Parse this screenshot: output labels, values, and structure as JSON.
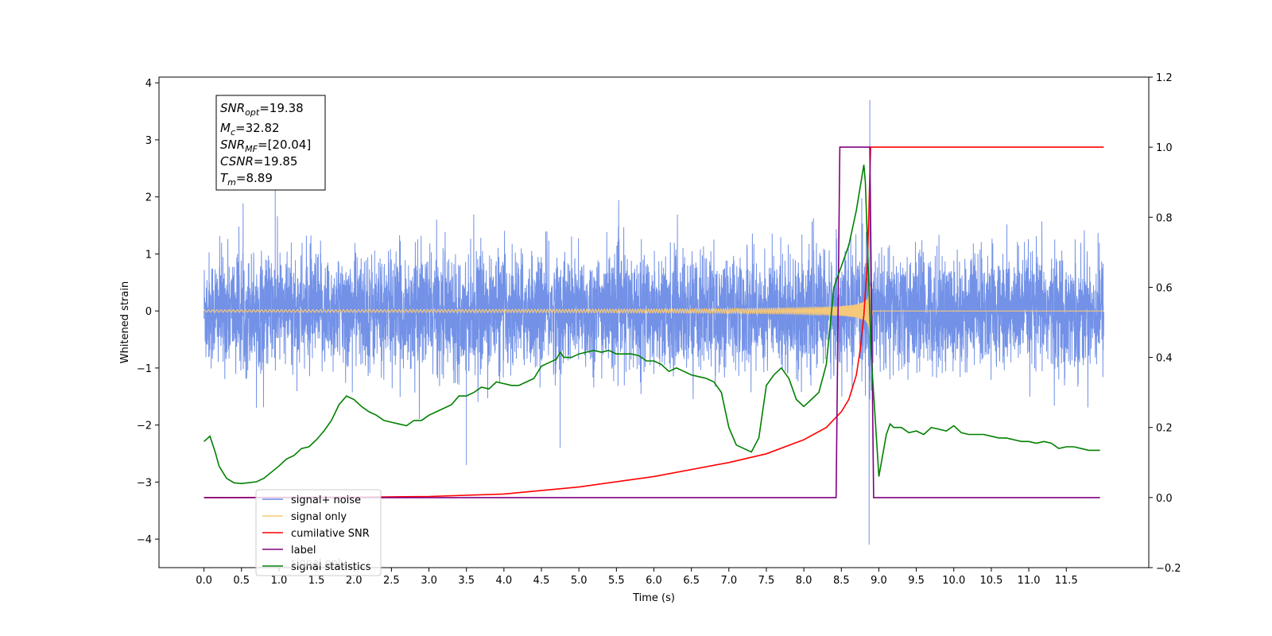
{
  "chart_data": {
    "type": "line",
    "xlabel": "Time (s)",
    "ylabel": "Whitened strain",
    "xlim": [
      -0.6,
      12.6
    ],
    "ylim": [
      -4.5,
      4.1
    ],
    "ylim_right": [
      -0.2,
      1.2
    ],
    "x_ticks": [
      "0.0",
      "0.5",
      "1.0",
      "1.5",
      "2.0",
      "2.5",
      "3.0",
      "3.5",
      "4.0",
      "4.5",
      "5.0",
      "5.5",
      "6.0",
      "6.5",
      "7.0",
      "7.5",
      "8.0",
      "8.5",
      "9.0",
      "9.5",
      "10.0",
      "10.5",
      "11.0",
      "11.5"
    ],
    "y_ticks": [
      "4",
      "3",
      "2",
      "1",
      "0",
      "−1",
      "−2",
      "−3",
      "−4"
    ],
    "y_ticks_right": [
      "1.2",
      "1.0",
      "0.8",
      "0.6",
      "0.4",
      "0.2",
      "0.0",
      "−0.2"
    ],
    "legend_position": "lower-left",
    "series": [
      {
        "name": "signal+ noise",
        "color": "#6a8be6",
        "axis": "left",
        "kind": "noise",
        "amplitude_rms": 0.5,
        "extremes": [
          [
            0.95,
            2.2
          ],
          [
            8.88,
            3.7
          ],
          [
            8.87,
            -4.1
          ],
          [
            3.5,
            -2.7
          ],
          [
            4.75,
            -2.4
          ]
        ]
      },
      {
        "name": "signal only",
        "color": "#f5c87a",
        "axis": "left",
        "kind": "chirp",
        "t_merger": 8.89,
        "peak_amplitude": 1.4
      },
      {
        "name": "cumilative SNR",
        "color": "#ff0000",
        "axis": "right",
        "x": [
          0.0,
          2.0,
          3.0,
          4.0,
          5.0,
          6.0,
          7.0,
          7.5,
          8.0,
          8.3,
          8.5,
          8.6,
          8.7,
          8.75,
          8.8,
          8.85,
          8.89,
          8.9,
          12.0
        ],
        "y": [
          0.0,
          0.001,
          0.003,
          0.01,
          0.03,
          0.06,
          0.1,
          0.125,
          0.165,
          0.2,
          0.245,
          0.28,
          0.35,
          0.42,
          0.52,
          0.68,
          1.0,
          1.0,
          1.0
        ]
      },
      {
        "name": "label",
        "color": "#800080",
        "axis": "right",
        "x": [
          0.0,
          8.43,
          8.48,
          8.88,
          8.93,
          11.95
        ],
        "y": [
          0.0,
          0.0,
          1.0,
          1.0,
          0.0,
          0.0
        ]
      },
      {
        "name": "signal statistics",
        "color": "#008000",
        "axis": "right",
        "x": [
          0.0,
          0.08,
          0.15,
          0.2,
          0.3,
          0.4,
          0.5,
          0.7,
          0.8,
          1.0,
          1.1,
          1.2,
          1.3,
          1.4,
          1.5,
          1.6,
          1.7,
          1.8,
          1.9,
          2.0,
          2.1,
          2.2,
          2.3,
          2.4,
          2.5,
          2.6,
          2.7,
          2.8,
          2.9,
          3.0,
          3.1,
          3.2,
          3.3,
          3.4,
          3.5,
          3.6,
          3.7,
          3.8,
          3.9,
          4.0,
          4.1,
          4.2,
          4.3,
          4.4,
          4.5,
          4.6,
          4.7,
          4.75,
          4.8,
          4.9,
          5.0,
          5.1,
          5.2,
          5.3,
          5.4,
          5.5,
          5.6,
          5.7,
          5.8,
          5.9,
          6.0,
          6.1,
          6.2,
          6.3,
          6.4,
          6.5,
          6.6,
          6.7,
          6.8,
          6.9,
          7.0,
          7.1,
          7.2,
          7.3,
          7.4,
          7.5,
          7.6,
          7.7,
          7.8,
          7.9,
          8.0,
          8.1,
          8.2,
          8.3,
          8.4,
          8.5,
          8.6,
          8.7,
          8.8,
          8.82,
          8.9,
          9.0,
          9.1,
          9.15,
          9.2,
          9.3,
          9.4,
          9.5,
          9.6,
          9.7,
          9.8,
          9.9,
          10.0,
          10.1,
          10.2,
          10.3,
          10.4,
          10.5,
          10.6,
          10.7,
          10.8,
          10.9,
          11.0,
          11.1,
          11.2,
          11.3,
          11.4,
          11.5,
          11.6,
          11.7,
          11.8,
          11.9,
          11.95
        ],
        "y": [
          0.16,
          0.175,
          0.13,
          0.09,
          0.055,
          0.042,
          0.04,
          0.045,
          0.055,
          0.09,
          0.11,
          0.12,
          0.14,
          0.145,
          0.165,
          0.19,
          0.22,
          0.265,
          0.29,
          0.28,
          0.26,
          0.245,
          0.235,
          0.22,
          0.215,
          0.21,
          0.205,
          0.22,
          0.22,
          0.235,
          0.245,
          0.255,
          0.265,
          0.29,
          0.29,
          0.3,
          0.315,
          0.31,
          0.33,
          0.325,
          0.32,
          0.32,
          0.33,
          0.34,
          0.375,
          0.385,
          0.395,
          0.415,
          0.4,
          0.4,
          0.41,
          0.415,
          0.42,
          0.415,
          0.42,
          0.41,
          0.41,
          0.41,
          0.405,
          0.39,
          0.39,
          0.38,
          0.36,
          0.37,
          0.36,
          0.35,
          0.345,
          0.34,
          0.33,
          0.3,
          0.2,
          0.15,
          0.14,
          0.13,
          0.17,
          0.32,
          0.35,
          0.37,
          0.34,
          0.28,
          0.26,
          0.28,
          0.3,
          0.38,
          0.6,
          0.66,
          0.72,
          0.82,
          0.95,
          0.9,
          0.4,
          0.06,
          0.18,
          0.21,
          0.2,
          0.2,
          0.185,
          0.19,
          0.18,
          0.2,
          0.195,
          0.19,
          0.205,
          0.185,
          0.18,
          0.18,
          0.18,
          0.175,
          0.17,
          0.17,
          0.165,
          0.16,
          0.16,
          0.155,
          0.16,
          0.155,
          0.14,
          0.145,
          0.145,
          0.14,
          0.135,
          0.135,
          0.135
        ]
      }
    ],
    "annotation": {
      "position": "top-left",
      "lines": [
        {
          "base": "SNR",
          "sub": "opt",
          "value": "=19.38"
        },
        {
          "base": "M",
          "sub": "c",
          "value": "=32.82"
        },
        {
          "base": "SNR",
          "sub": "MF",
          "value": "=[20.04]"
        },
        {
          "base": "CSNR",
          "sub": "",
          "value": "=19.85"
        },
        {
          "base": "T",
          "sub": "m",
          "value": "=8.89"
        }
      ]
    },
    "legend": [
      {
        "label": "signal+ noise",
        "color": "#6a8be6"
      },
      {
        "label": "signal only",
        "color": "#f5c87a"
      },
      {
        "label": "cumilative SNR",
        "color": "#ff0000"
      },
      {
        "label": "label",
        "color": "#800080"
      },
      {
        "label": "signal statistics",
        "color": "#008000"
      }
    ],
    "hidden_legend_text": "signal only"
  }
}
